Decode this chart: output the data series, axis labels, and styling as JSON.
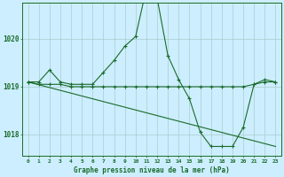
{
  "background_color": "#cceeff",
  "grid_color": "#aacccc",
  "line_color": "#1a6b2a",
  "marker_color": "#1a6b2a",
  "title": "Graphe pression niveau de la mer (hPa)",
  "yticks": [
    1018,
    1019,
    1020
  ],
  "xticks": [
    0,
    1,
    2,
    3,
    4,
    5,
    6,
    7,
    8,
    9,
    10,
    11,
    12,
    13,
    14,
    15,
    16,
    17,
    18,
    19,
    20,
    21,
    22,
    23
  ],
  "xlim": [
    -0.5,
    23.5
  ],
  "ylim": [
    1017.55,
    1020.75
  ],
  "series1": {
    "x": [
      0,
      1,
      2,
      3,
      4,
      5,
      6,
      7,
      8,
      9,
      10,
      11,
      12,
      13,
      14,
      15,
      16,
      17,
      18,
      19,
      20,
      21,
      22,
      23
    ],
    "y": [
      1019.1,
      1019.1,
      1019.35,
      1019.1,
      1019.05,
      1019.05,
      1019.05,
      1019.3,
      1019.55,
      1019.85,
      1020.05,
      1021.05,
      1020.85,
      1019.65,
      1019.15,
      1018.75,
      1018.05,
      1017.75,
      1017.75,
      1017.75,
      1018.15,
      1019.05,
      1019.15,
      1019.1
    ]
  },
  "series2": {
    "x": [
      0,
      1,
      2,
      3,
      4,
      5,
      6,
      7,
      8,
      9,
      10,
      11,
      12,
      13,
      14,
      15,
      16,
      17,
      18,
      19,
      20,
      21,
      22,
      23
    ],
    "y": [
      1019.1,
      1019.05,
      1019.05,
      1019.05,
      1019.0,
      1019.0,
      1019.0,
      1019.0,
      1019.0,
      1019.0,
      1019.0,
      1019.0,
      1019.0,
      1019.0,
      1019.0,
      1019.0,
      1019.0,
      1019.0,
      1019.0,
      1019.0,
      1019.0,
      1019.05,
      1019.1,
      1019.1
    ]
  },
  "series3": {
    "x": [
      0,
      23
    ],
    "y": [
      1019.1,
      1017.75
    ]
  },
  "series4": {
    "x": [
      0,
      7
    ],
    "y": [
      1019.1,
      1019.3
    ]
  }
}
